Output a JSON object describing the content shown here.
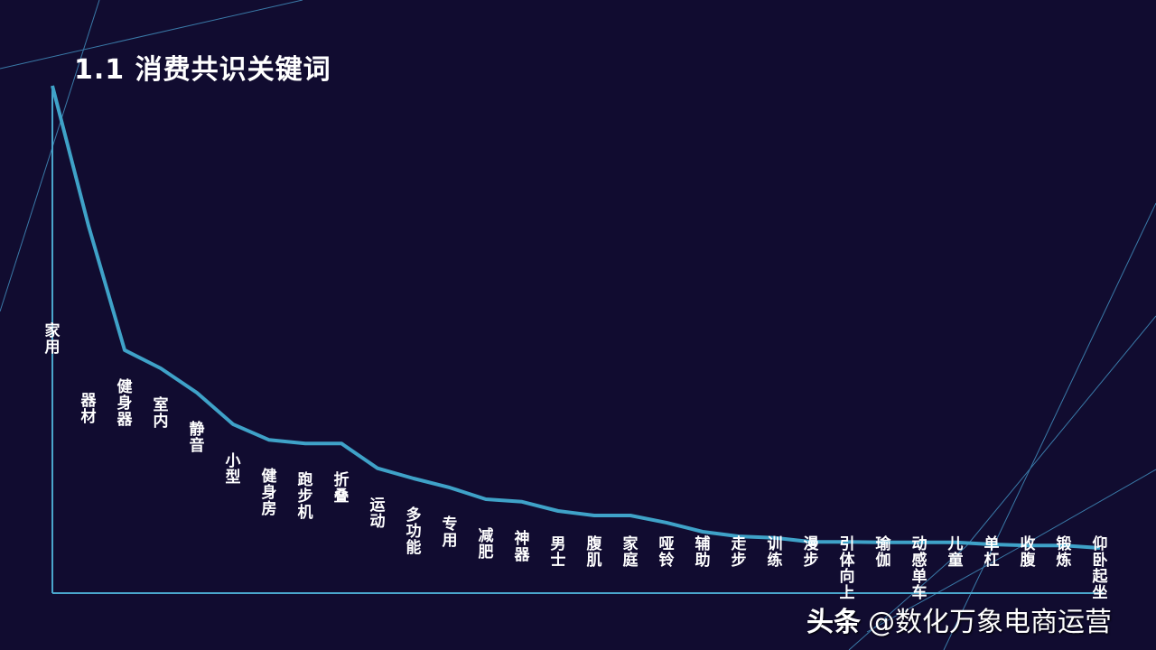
{
  "slide": {
    "title": "1.1 消费共识关键词",
    "watermark": {
      "brand": "头条",
      "handle": "@数化万象电商运营"
    },
    "colors": {
      "background": "#110c30",
      "line": "#3fa2c8",
      "axis": "#4aa6cc",
      "decor": "#3a7aa8",
      "text": "#ffffff"
    }
  },
  "chart_data": {
    "type": "line",
    "title": "1.1 消费共识关键词",
    "xlabel": "",
    "ylabel": "",
    "grid": false,
    "legend": null,
    "y_scale_note": "relative keyword frequency, no numeric axis shown; values normalized to peak = 100",
    "ylim": [
      0,
      100
    ],
    "categories": [
      "家用",
      "器材",
      "健身器",
      "室内",
      "静音",
      "小型",
      "健身房",
      "跑步机",
      "折叠",
      "运动",
      "多功能",
      "专用",
      "减肥",
      "神器",
      "男士",
      "腹肌",
      "家庭",
      "哑铃",
      "辅助",
      "走步",
      "训练",
      "漫步",
      "引体向上",
      "瑜伽",
      "动感单车",
      "儿童",
      "单杠",
      "收腹",
      "锻炼",
      "仰卧起坐"
    ],
    "values": [
      100,
      72.4,
      47.9,
      44.3,
      39.5,
      33.3,
      30.2,
      29.5,
      29.5,
      24.6,
      22.6,
      20.8,
      18.5,
      18.0,
      16.2,
      15.3,
      15.3,
      13.9,
      12.1,
      11.2,
      10.9,
      10.1,
      10.1,
      10.0,
      10.0,
      10.0,
      9.6,
      9.4,
      9.4,
      8.9
    ]
  }
}
